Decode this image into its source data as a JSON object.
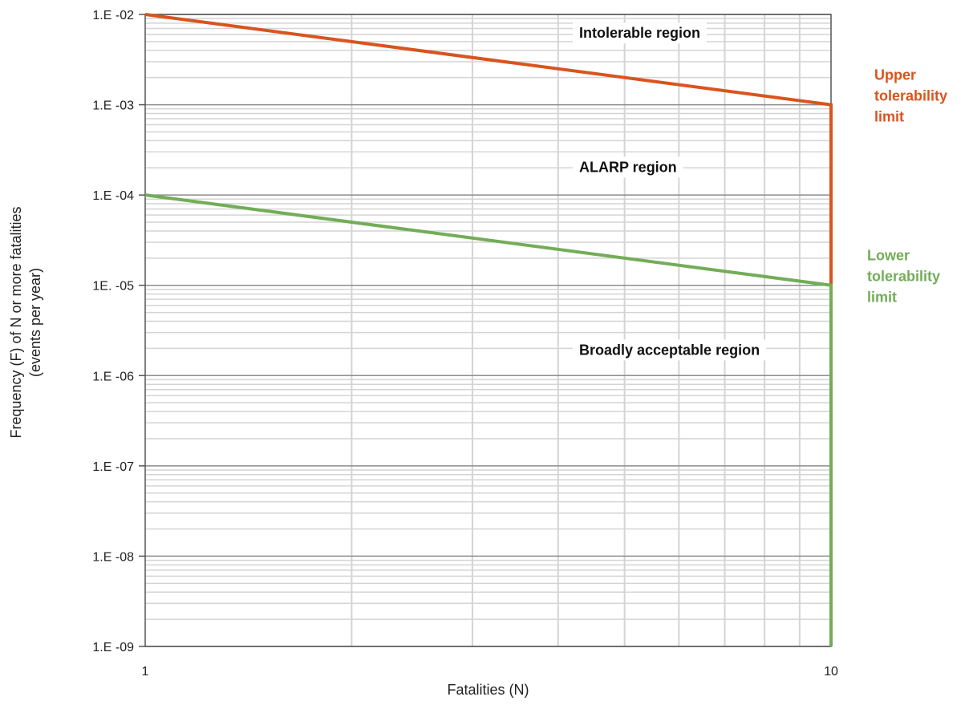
{
  "chart_data": {
    "type": "line",
    "title": "",
    "xlabel": "Fatalities (N)",
    "ylabel_lines": [
      "Frequency (F) of N or more fatalities",
      "(events per year)"
    ],
    "x_scale": "log",
    "y_scale": "log",
    "xlim": [
      1,
      10
    ],
    "ylim": [
      1e-09,
      0.01
    ],
    "grid": true,
    "x_ticks": [
      {
        "value": 1,
        "label": "1"
      },
      {
        "value": 10,
        "label": "10"
      }
    ],
    "y_ticks": [
      {
        "value": 0.01,
        "label": "1.E -02"
      },
      {
        "value": 0.001,
        "label": "1.E -03"
      },
      {
        "value": 0.0001,
        "label": "1.E -04"
      },
      {
        "value": 1e-05,
        "label": "1E. -05"
      },
      {
        "value": 1e-06,
        "label": "1.E -06"
      },
      {
        "value": 1e-07,
        "label": "1.E -07"
      },
      {
        "value": 1e-08,
        "label": "1.E -08"
      },
      {
        "value": 1e-09,
        "label": "1.E -09"
      }
    ],
    "series": [
      {
        "name": "Upper tolerability limit",
        "color": "#d9541e",
        "points": [
          {
            "x": 1,
            "y": 0.01
          },
          {
            "x": 10,
            "y": 0.001
          },
          {
            "x": 10,
            "y": 1e-05
          }
        ]
      },
      {
        "name": "Lower tolerability limit",
        "color": "#72ad57",
        "points": [
          {
            "x": 1,
            "y": 0.0001
          },
          {
            "x": 10,
            "y": 1e-05
          },
          {
            "x": 10,
            "y": 1e-09
          }
        ]
      }
    ],
    "region_labels": [
      {
        "text": "Intolerable region",
        "x": 3.5,
        "y": 0.0055
      },
      {
        "text": "ALARP region",
        "x": 3.5,
        "y": 0.00018
      },
      {
        "text": "Broadly acceptable region",
        "x": 3.5,
        "y": 1.7e-06
      }
    ],
    "limit_labels": [
      {
        "lines": [
          "Upper",
          "tolerability",
          "limit"
        ],
        "color": "#d9541e",
        "y": 0.0016
      },
      {
        "lines": [
          "Lower",
          "tolerability",
          "limit"
        ],
        "color": "#72ad57",
        "y": 1.6e-05
      }
    ]
  }
}
